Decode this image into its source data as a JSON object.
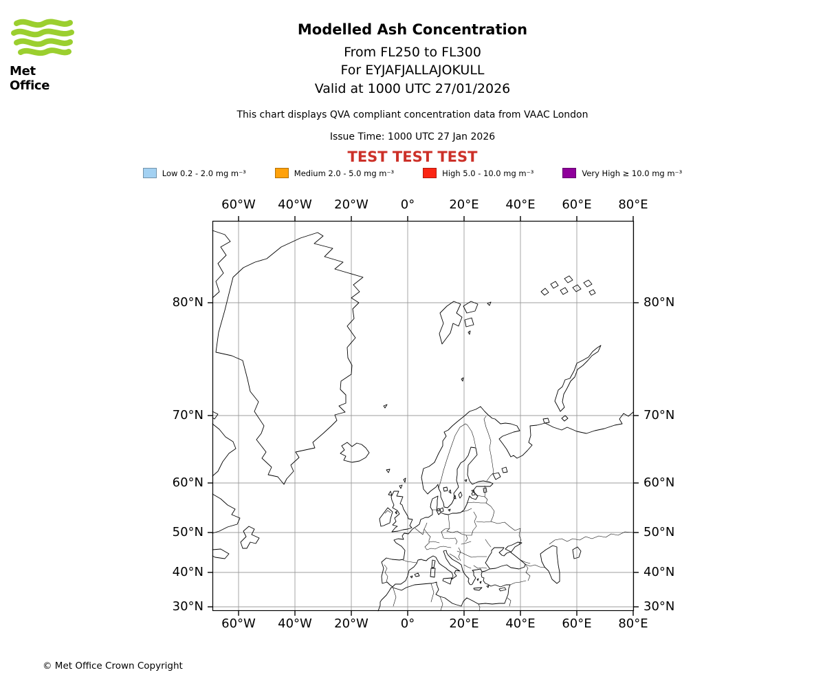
{
  "header": {
    "logo_text": "Met Office",
    "title": "Modelled Ash Concentration",
    "flight_level_line": "From FL250 to FL300",
    "volcano_line": "For EYJAFJALLAJOKULL",
    "valid_line": "Valid at 1000 UTC 27/01/2026",
    "compliance_note": "This chart displays QVA compliant concentration data from VAAC London",
    "issue_time": "Issue Time: 1000 UTC 27 Jan 2026",
    "test_banner": "TEST TEST TEST"
  },
  "colors": {
    "test_banner_red": "#cc3028",
    "logo_green": "#9bcf2f"
  },
  "legend": {
    "items": [
      {
        "label": "Low 0.2 - 2.0 mg m⁻³",
        "color": "#a3d1f2"
      },
      {
        "label": "Medium 2.0 - 5.0 mg m⁻³",
        "color": "#ffa10a"
      },
      {
        "label": "High 5.0 - 10.0 mg m⁻³",
        "color": "#fb2513"
      },
      {
        "label": "Very High ≥ 10.0 mg m⁻³",
        "color": "#8f009b"
      }
    ]
  },
  "map": {
    "x_tick_labels": [
      "60°W",
      "40°W",
      "20°W",
      "0°",
      "20°E",
      "40°E",
      "60°E",
      "80°E"
    ],
    "y_tick_labels": [
      "80°N",
      "70°N",
      "60°N",
      "50°N",
      "40°N",
      "30°N"
    ]
  },
  "footer": {
    "copyright_text": "© Met Office Crown Copyright"
  }
}
